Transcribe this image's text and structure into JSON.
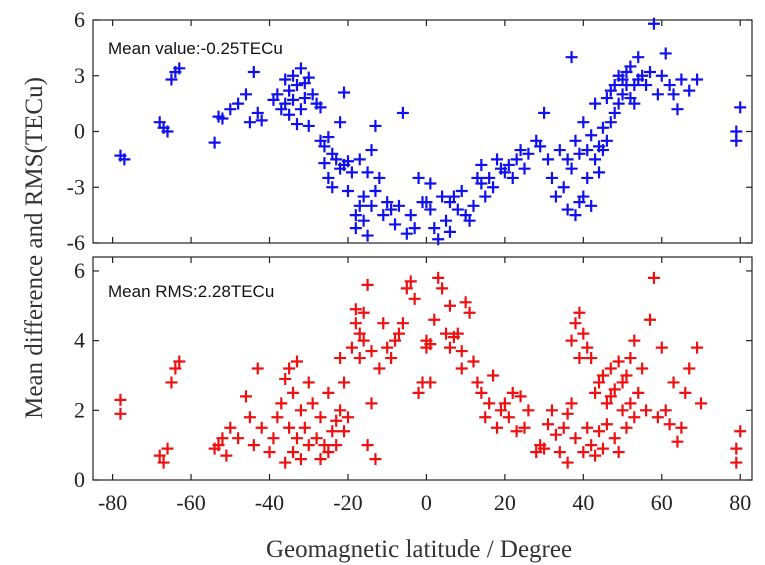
{
  "chart_data": [
    {
      "type": "scatter",
      "xlabel": "Geomagnetic latitude / Degree",
      "ylabel": "Mean difference and RMS(TECu)",
      "annotation": "Mean value:-0.25TECu",
      "color": "#1010ee",
      "marker": "plus",
      "xlim": [
        -85,
        83
      ],
      "ylim": [
        -6,
        6
      ],
      "yticks": [
        "-6",
        "-3",
        "0",
        "3",
        "6"
      ],
      "xticks": [],
      "points": [
        [
          -78,
          -1.3
        ],
        [
          -77,
          -1.5
        ],
        [
          -68,
          0.5
        ],
        [
          -67,
          0.2
        ],
        [
          -66,
          0.0
        ],
        [
          -65,
          2.8
        ],
        [
          -64,
          3.2
        ],
        [
          -63,
          3.4
        ],
        [
          -54,
          -0.6
        ],
        [
          -53,
          0.8
        ],
        [
          -52,
          0.7
        ],
        [
          -50,
          1.2
        ],
        [
          -48,
          1.5
        ],
        [
          -46,
          2.0
        ],
        [
          -45,
          0.5
        ],
        [
          -44,
          3.2
        ],
        [
          -43,
          1.0
        ],
        [
          -42,
          0.6
        ],
        [
          -39,
          1.7
        ],
        [
          -38,
          2.0
        ],
        [
          -37,
          1.2
        ],
        [
          -36,
          1.5
        ],
        [
          -36,
          2.8
        ],
        [
          -35,
          0.9
        ],
        [
          -35,
          2.2
        ],
        [
          -34,
          1.7
        ],
        [
          -34,
          3.0
        ],
        [
          -33,
          0.4
        ],
        [
          -33,
          2.5
        ],
        [
          -32,
          1.2
        ],
        [
          -32,
          3.4
        ],
        [
          -31,
          1.8
        ],
        [
          -31,
          2.6
        ],
        [
          -30,
          0.3
        ],
        [
          -30,
          2.9
        ],
        [
          -29,
          2.0
        ],
        [
          -28,
          1.5
        ],
        [
          -27,
          -0.5
        ],
        [
          -27,
          1.3
        ],
        [
          -26,
          -0.8
        ],
        [
          -26,
          -1.7
        ],
        [
          -25,
          -0.3
        ],
        [
          -25,
          -2.5
        ],
        [
          -24,
          -1.2
        ],
        [
          -24,
          -3.0
        ],
        [
          -23,
          -1.5
        ],
        [
          -22,
          -2.0
        ],
        [
          -22,
          0.5
        ],
        [
          -21,
          -1.8
        ],
        [
          -21,
          2.1
        ],
        [
          -20,
          -1.6
        ],
        [
          -20,
          -3.2
        ],
        [
          -19,
          -2.2
        ],
        [
          -18,
          -4.5
        ],
        [
          -18,
          -5.2
        ],
        [
          -17,
          -4.0
        ],
        [
          -17,
          -1.5
        ],
        [
          -16,
          -4.8
        ],
        [
          -16,
          -3.5
        ],
        [
          -15,
          -5.6
        ],
        [
          -15,
          -2.2
        ],
        [
          -14,
          -1.0
        ],
        [
          -14,
          -4.0
        ],
        [
          -13,
          0.3
        ],
        [
          -13,
          -3.2
        ],
        [
          -12,
          -2.5
        ],
        [
          -11,
          -4.5
        ],
        [
          -10,
          -3.8
        ],
        [
          -9,
          -4.2
        ],
        [
          -8,
          -5.0
        ],
        [
          -7,
          -4.0
        ],
        [
          -6,
          1.0
        ],
        [
          -5,
          -5.5
        ],
        [
          -4,
          -4.5
        ],
        [
          -3,
          -5.2
        ],
        [
          -2,
          -2.5
        ],
        [
          -1,
          -3.8
        ],
        [
          0,
          -3.8
        ],
        [
          1,
          -2.8
        ],
        [
          1,
          -4.2
        ],
        [
          2,
          -5.2
        ],
        [
          3,
          -5.8
        ],
        [
          4,
          -3.5
        ],
        [
          5,
          -4.8
        ],
        [
          6,
          -3.8
        ],
        [
          6,
          -5.4
        ],
        [
          7,
          -3.5
        ],
        [
          8,
          -4.2
        ],
        [
          9,
          -3.2
        ],
        [
          10,
          -4.5
        ],
        [
          11,
          -4.8
        ],
        [
          12,
          -4.0
        ],
        [
          13,
          -2.5
        ],
        [
          14,
          -1.8
        ],
        [
          14,
          -2.8
        ],
        [
          15,
          -3.5
        ],
        [
          16,
          -2.5
        ],
        [
          17,
          -3.0
        ],
        [
          18,
          -1.5
        ],
        [
          19,
          -2.0
        ],
        [
          20,
          -2.2
        ],
        [
          21,
          -1.8
        ],
        [
          22,
          -2.5
        ],
        [
          23,
          -1.5
        ],
        [
          24,
          -1.0
        ],
        [
          25,
          -2.0
        ],
        [
          26,
          -1.2
        ],
        [
          28,
          -0.5
        ],
        [
          29,
          -0.8
        ],
        [
          30,
          1.0
        ],
        [
          31,
          -1.5
        ],
        [
          32,
          -2.5
        ],
        [
          33,
          -3.5
        ],
        [
          34,
          -1.0
        ],
        [
          35,
          -3.0
        ],
        [
          36,
          -1.5
        ],
        [
          36,
          -4.2
        ],
        [
          37,
          4.0
        ],
        [
          37,
          -2.0
        ],
        [
          38,
          -0.5
        ],
        [
          38,
          -4.5
        ],
        [
          39,
          -1.2
        ],
        [
          39,
          -3.8
        ],
        [
          40,
          0.5
        ],
        [
          40,
          -3.5
        ],
        [
          41,
          -1.0
        ],
        [
          41,
          -2.5
        ],
        [
          42,
          -0.2
        ],
        [
          42,
          -4.0
        ],
        [
          43,
          -1.5
        ],
        [
          43,
          1.5
        ],
        [
          44,
          -0.8
        ],
        [
          44,
          -2.2
        ],
        [
          45,
          0.2
        ],
        [
          45,
          -1.0
        ],
        [
          46,
          1.8
        ],
        [
          46,
          -0.5
        ],
        [
          47,
          2.2
        ],
        [
          47,
          0.5
        ],
        [
          48,
          2.5
        ],
        [
          48,
          1.0
        ],
        [
          49,
          3.0
        ],
        [
          49,
          1.5
        ],
        [
          50,
          2.8
        ],
        [
          50,
          2.0
        ],
        [
          51,
          2.5
        ],
        [
          51,
          3.2
        ],
        [
          52,
          1.8
        ],
        [
          52,
          3.5
        ],
        [
          53,
          2.5
        ],
        [
          53,
          1.5
        ],
        [
          54,
          4.0
        ],
        [
          54,
          2.8
        ],
        [
          55,
          3.0
        ],
        [
          56,
          2.5
        ],
        [
          57,
          3.2
        ],
        [
          58,
          5.8
        ],
        [
          59,
          2.0
        ],
        [
          60,
          3.0
        ],
        [
          61,
          4.2
        ],
        [
          62,
          2.5
        ],
        [
          63,
          2.0
        ],
        [
          64,
          1.2
        ],
        [
          65,
          2.8
        ],
        [
          67,
          2.2
        ],
        [
          69,
          2.8
        ],
        [
          79,
          0.0
        ],
        [
          80,
          1.3
        ],
        [
          79,
          -0.5
        ]
      ]
    },
    {
      "type": "scatter",
      "xlabel": "Geomagnetic latitude / Degree",
      "ylabel": "Mean difference and RMS(TECu)",
      "annotation": "Mean RMS:2.28TECu",
      "color": "#ee1010",
      "marker": "plus",
      "xlim": [
        -85,
        83
      ],
      "ylim": [
        0,
        6.4
      ],
      "yticks": [
        "0",
        "2",
        "4",
        "6"
      ],
      "xticks": [
        "-80",
        "-60",
        "-40",
        "-20",
        "0",
        "20",
        "40",
        "60",
        "80"
      ],
      "points": [
        [
          -78,
          2.3
        ],
        [
          -78,
          1.9
        ],
        [
          -68,
          0.7
        ],
        [
          -67,
          0.5
        ],
        [
          -66,
          0.9
        ],
        [
          -65,
          2.8
        ],
        [
          -64,
          3.2
        ],
        [
          -63,
          3.4
        ],
        [
          -54,
          0.9
        ],
        [
          -53,
          1.0
        ],
        [
          -52,
          1.2
        ],
        [
          -51,
          0.7
        ],
        [
          -50,
          1.5
        ],
        [
          -48,
          1.2
        ],
        [
          -46,
          2.4
        ],
        [
          -45,
          1.8
        ],
        [
          -44,
          1.0
        ],
        [
          -43,
          3.2
        ],
        [
          -42,
          1.5
        ],
        [
          -40,
          0.8
        ],
        [
          -39,
          1.2
        ],
        [
          -38,
          1.8
        ],
        [
          -37,
          2.2
        ],
        [
          -36,
          0.5
        ],
        [
          -36,
          2.9
        ],
        [
          -35,
          1.5
        ],
        [
          -35,
          3.2
        ],
        [
          -34,
          0.8
        ],
        [
          -34,
          2.5
        ],
        [
          -33,
          1.2
        ],
        [
          -33,
          3.4
        ],
        [
          -32,
          2.0
        ],
        [
          -32,
          0.6
        ],
        [
          -31,
          1.5
        ],
        [
          -30,
          2.8
        ],
        [
          -30,
          1.0
        ],
        [
          -29,
          2.2
        ],
        [
          -28,
          1.2
        ],
        [
          -27,
          0.6
        ],
        [
          -27,
          1.8
        ],
        [
          -26,
          1.0
        ],
        [
          -25,
          0.8
        ],
        [
          -25,
          2.5
        ],
        [
          -24,
          1.4
        ],
        [
          -23,
          1.0
        ],
        [
          -23,
          1.7
        ],
        [
          -22,
          2.0
        ],
        [
          -22,
          3.5
        ],
        [
          -21,
          1.4
        ],
        [
          -21,
          2.8
        ],
        [
          -20,
          1.8
        ],
        [
          -19,
          3.8
        ],
        [
          -18,
          4.5
        ],
        [
          -18,
          4.9
        ],
        [
          -17,
          4.2
        ],
        [
          -17,
          3.5
        ],
        [
          -16,
          4.0
        ],
        [
          -16,
          4.8
        ],
        [
          -15,
          1.0
        ],
        [
          -15,
          5.6
        ],
        [
          -14,
          2.2
        ],
        [
          -14,
          3.7
        ],
        [
          -13,
          0.6
        ],
        [
          -12,
          3.2
        ],
        [
          -11,
          4.5
        ],
        [
          -10,
          3.8
        ],
        [
          -9,
          3.5
        ],
        [
          -8,
          4.0
        ],
        [
          -7,
          4.2
        ],
        [
          -6,
          4.5
        ],
        [
          -5,
          5.5
        ],
        [
          -4,
          5.7
        ],
        [
          -3,
          5.2
        ],
        [
          -2,
          2.5
        ],
        [
          -1,
          2.8
        ],
        [
          0,
          3.8
        ],
        [
          0,
          4.0
        ],
        [
          1,
          2.8
        ],
        [
          1,
          3.9
        ],
        [
          2,
          4.6
        ],
        [
          3,
          5.8
        ],
        [
          4,
          5.5
        ],
        [
          5,
          4.2
        ],
        [
          6,
          3.8
        ],
        [
          6,
          5.0
        ],
        [
          7,
          4.1
        ],
        [
          8,
          4.2
        ],
        [
          9,
          3.2
        ],
        [
          9,
          3.7
        ],
        [
          10,
          5.1
        ],
        [
          11,
          4.8
        ],
        [
          12,
          3.4
        ],
        [
          13,
          2.8
        ],
        [
          14,
          2.5
        ],
        [
          15,
          1.8
        ],
        [
          16,
          2.2
        ],
        [
          17,
          3.0
        ],
        [
          18,
          1.5
        ],
        [
          19,
          2.0
        ],
        [
          20,
          2.2
        ],
        [
          21,
          1.8
        ],
        [
          22,
          2.5
        ],
        [
          23,
          1.4
        ],
        [
          24,
          2.4
        ],
        [
          25,
          1.5
        ],
        [
          26,
          2.0
        ],
        [
          28,
          0.8
        ],
        [
          29,
          1.0
        ],
        [
          30,
          0.9
        ],
        [
          31,
          1.6
        ],
        [
          32,
          2.0
        ],
        [
          33,
          1.3
        ],
        [
          34,
          0.8
        ],
        [
          35,
          1.5
        ],
        [
          36,
          1.9
        ],
        [
          36,
          0.5
        ],
        [
          37,
          4.0
        ],
        [
          37,
          2.2
        ],
        [
          38,
          4.5
        ],
        [
          38,
          1.2
        ],
        [
          39,
          4.8
        ],
        [
          39,
          3.5
        ],
        [
          40,
          4.2
        ],
        [
          40,
          0.8
        ],
        [
          41,
          3.8
        ],
        [
          41,
          1.5
        ],
        [
          42,
          1.0
        ],
        [
          42,
          3.5
        ],
        [
          43,
          0.7
        ],
        [
          43,
          2.5
        ],
        [
          44,
          1.4
        ],
        [
          44,
          2.8
        ],
        [
          45,
          0.9
        ],
        [
          45,
          3.0
        ],
        [
          46,
          1.6
        ],
        [
          46,
          2.2
        ],
        [
          47,
          2.4
        ],
        [
          47,
          3.2
        ],
        [
          48,
          1.2
        ],
        [
          48,
          2.6
        ],
        [
          49,
          0.8
        ],
        [
          49,
          3.4
        ],
        [
          50,
          2.0
        ],
        [
          50,
          2.8
        ],
        [
          51,
          1.5
        ],
        [
          51,
          3.0
        ],
        [
          52,
          2.2
        ],
        [
          52,
          3.5
        ],
        [
          53,
          1.8
        ],
        [
          53,
          4.0
        ],
        [
          54,
          2.5
        ],
        [
          55,
          3.2
        ],
        [
          56,
          2.0
        ],
        [
          57,
          4.6
        ],
        [
          58,
          5.8
        ],
        [
          59,
          1.8
        ],
        [
          60,
          3.8
        ],
        [
          61,
          2.0
        ],
        [
          62,
          1.6
        ],
        [
          63,
          2.8
        ],
        [
          64,
          1.1
        ],
        [
          65,
          1.5
        ],
        [
          66,
          2.5
        ],
        [
          67,
          3.2
        ],
        [
          69,
          3.8
        ],
        [
          70,
          2.2
        ],
        [
          79,
          0.9
        ],
        [
          79,
          0.5
        ],
        [
          80,
          1.4
        ]
      ]
    }
  ]
}
